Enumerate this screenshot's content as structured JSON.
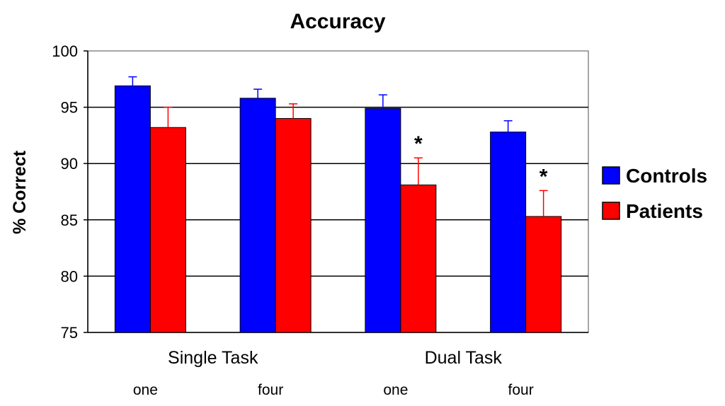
{
  "chart_data": {
    "type": "bar",
    "title": "Accuracy",
    "ylabel": "% Correct",
    "xlabel": "",
    "ylim": [
      75,
      100
    ],
    "yticks": [
      75,
      80,
      85,
      90,
      95,
      100
    ],
    "grid": true,
    "legend_position": "right",
    "groups": [
      {
        "label": "Single Task",
        "categories": [
          "one",
          "four"
        ]
      },
      {
        "label": "Dual Task",
        "categories": [
          "one",
          "four"
        ]
      }
    ],
    "categories": [
      "one",
      "four",
      "one",
      "four"
    ],
    "series": [
      {
        "name": "Controls",
        "color": "#0000ff",
        "values": [
          96.9,
          95.8,
          94.9,
          92.8
        ],
        "errors": [
          0.8,
          0.8,
          1.2,
          1.0
        ],
        "significance": [
          "",
          "",
          "",
          ""
        ]
      },
      {
        "name": "Patients",
        "color": "#ff0000",
        "values": [
          93.2,
          94.0,
          88.1,
          85.3
        ],
        "errors": [
          1.8,
          1.3,
          2.4,
          2.3
        ],
        "significance": [
          "",
          "",
          "*",
          "*"
        ]
      }
    ]
  }
}
